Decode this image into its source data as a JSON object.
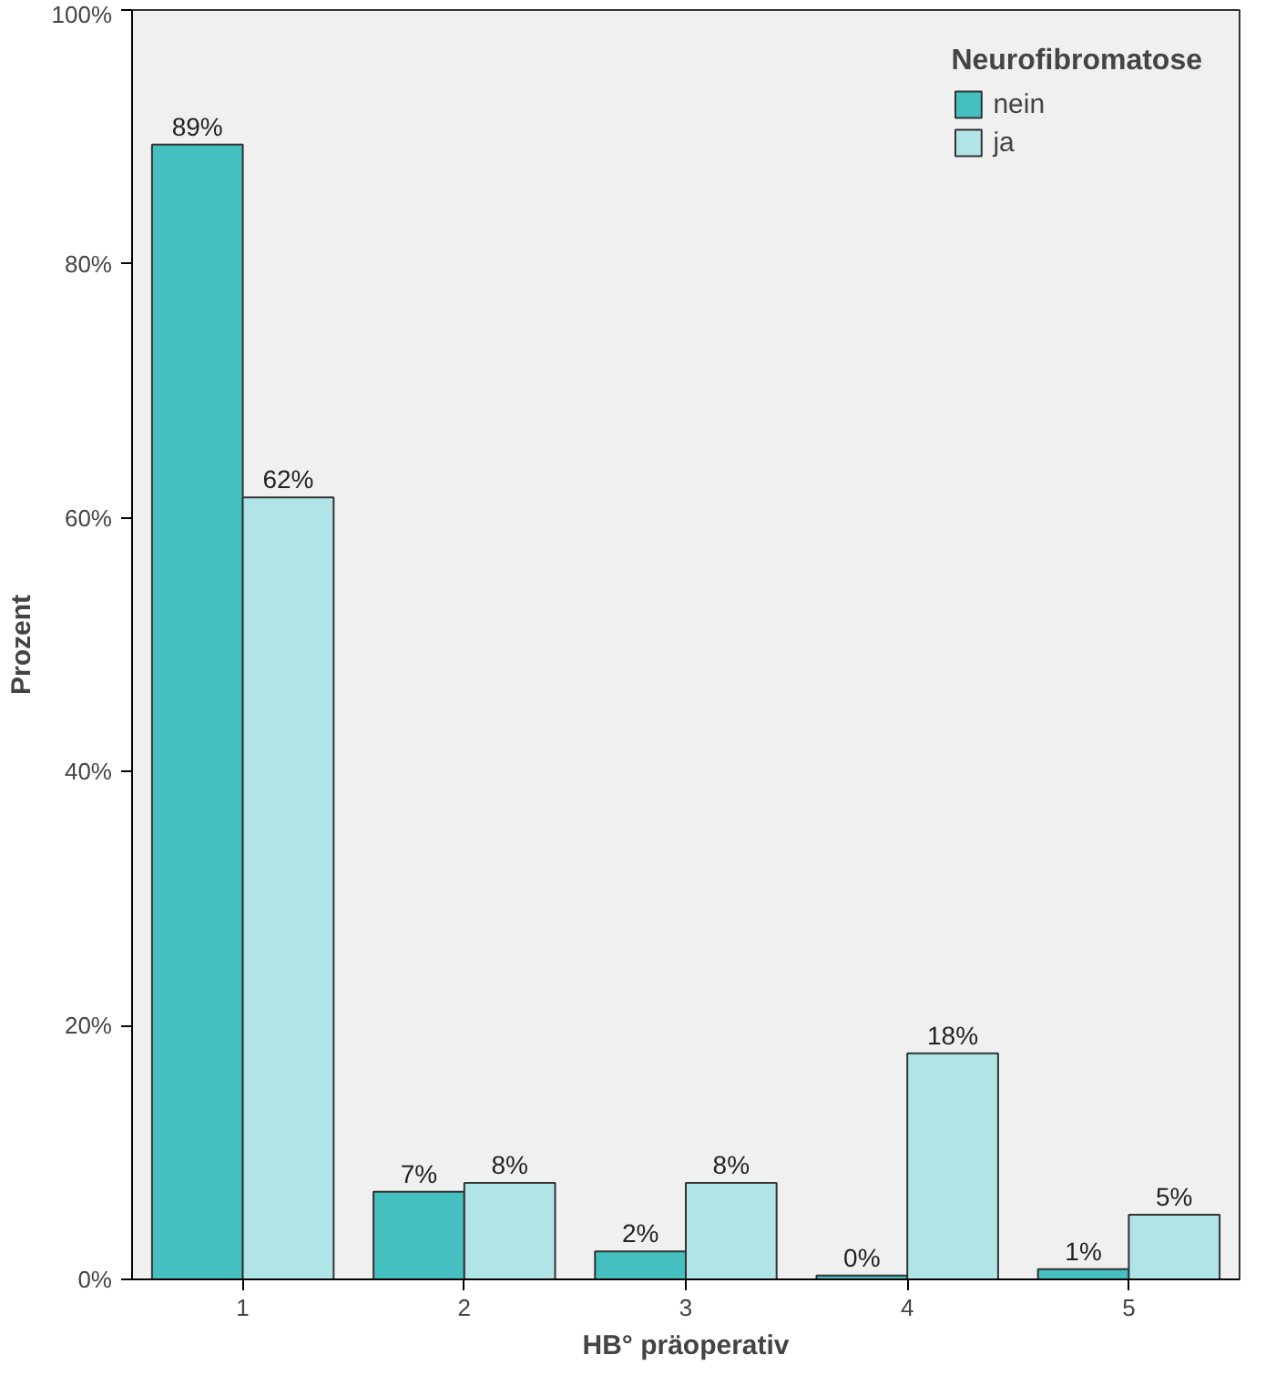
{
  "chart_data": {
    "type": "bar",
    "xlabel": "HB° präoperativ",
    "ylabel": "Prozent",
    "legend_title": "Neurofibromatose",
    "categories": [
      "1",
      "2",
      "3",
      "4",
      "5"
    ],
    "series": [
      {
        "name": "nein",
        "color": "#45bfc0",
        "values": [
          89.4,
          6.9,
          2.2,
          0.3,
          0.8
        ],
        "value_labels": [
          "89%",
          "7%",
          "2%",
          "0%",
          "1%"
        ]
      },
      {
        "name": "ja",
        "color": "#b0e4e6",
        "values": [
          61.6,
          7.6,
          7.6,
          17.8,
          5.1
        ],
        "value_labels": [
          "62%",
          "8%",
          "8%",
          "18%",
          "5%"
        ]
      }
    ],
    "ylim": [
      0,
      100
    ],
    "yticks": [
      {
        "value": 0,
        "label": "0%"
      },
      {
        "value": 20,
        "label": "20%"
      },
      {
        "value": 40,
        "label": "40%"
      },
      {
        "value": 60,
        "label": "60%"
      },
      {
        "value": 80,
        "label": "80%"
      },
      {
        "value": 100,
        "label": "100%"
      }
    ],
    "grid": false,
    "legend": "top right"
  }
}
